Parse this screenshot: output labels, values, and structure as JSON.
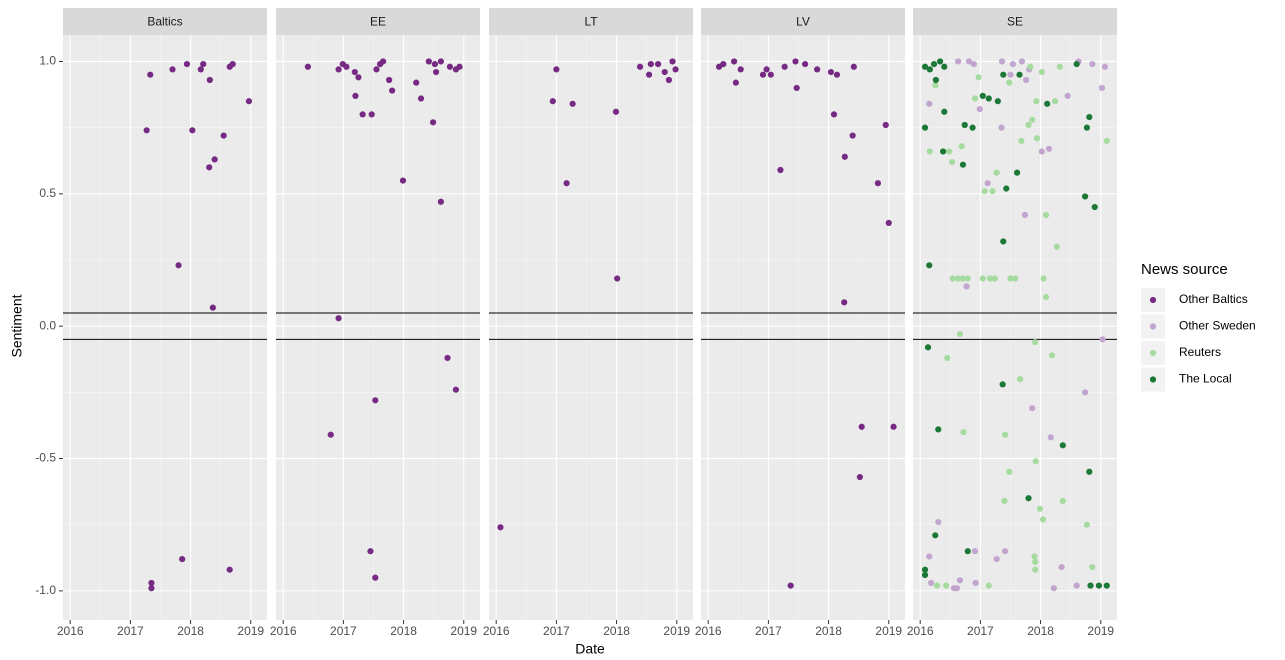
{
  "chart_data": {
    "type": "scatter",
    "xlabel": "Date",
    "ylabel": "Sentiment",
    "xlim": [
      2015.88,
      2019.27
    ],
    "xticks": [
      2016,
      2017,
      2018,
      2019
    ],
    "ylim": [
      -1.11,
      1.1
    ],
    "yticks": [
      {
        "value": -1,
        "label": "-1.0"
      },
      {
        "value": -0.5,
        "label": "-0.5"
      },
      {
        "value": 0,
        "label": "0.0"
      },
      {
        "value": 0.5,
        "label": "0.5"
      },
      {
        "value": 1,
        "label": "1.0"
      }
    ],
    "reference_lines": [
      0.05,
      -0.05
    ],
    "grid": true,
    "legend": {
      "title": "News source",
      "position": "right"
    },
    "series": [
      {
        "name": "Other Baltics",
        "color": "#762a83"
      },
      {
        "name": "Other Sweden",
        "color": "#c2a5cf"
      },
      {
        "name": "Reuters",
        "color": "#a6dba0"
      },
      {
        "name": "The Local",
        "color": "#1b7837"
      }
    ],
    "facets": [
      {
        "title": "Baltics",
        "series": [
          {
            "name": "Other Baltics",
            "x": [
              2017.27,
              2017.33,
              2017.7,
              2017.94,
              2018.17,
              2018.21,
              2018.03,
              2018.32,
              2018.31,
              2018.4,
              2018.55,
              2018.65,
              2018.7,
              2018.97,
              2017.8,
              2018.37,
              2017.35,
              2017.35,
              2017.86,
              2018.65
            ],
            "values": [
              0.74,
              0.95,
              0.97,
              0.99,
              0.97,
              0.99,
              0.74,
              0.93,
              0.6,
              0.63,
              0.72,
              0.98,
              0.99,
              0.85,
              0.23,
              0.07,
              -0.97,
              -0.99,
              -0.88,
              -0.92
            ]
          }
        ]
      },
      {
        "title": "EE",
        "series": [
          {
            "name": "Other Baltics",
            "x": [
              2016.41,
              2016.92,
              2016.99,
              2017.05,
              2017.19,
              2017.25,
              2017.2,
              2017.32,
              2017.47,
              2017.55,
              2017.61,
              2017.66,
              2017.76,
              2017.81,
              2017.99,
              2018.21,
              2018.29,
              2018.42,
              2018.52,
              2018.54,
              2018.62,
              2018.49,
              2018.62,
              2018.77,
              2018.87,
              2018.93,
              2016.92,
              2016.79,
              2017.53,
              2018.73,
              2018.87,
              2017.45,
              2017.53
            ],
            "values": [
              0.98,
              0.97,
              0.99,
              0.98,
              0.96,
              0.94,
              0.87,
              0.8,
              0.8,
              0.97,
              0.99,
              1.0,
              0.93,
              0.89,
              0.55,
              0.92,
              0.86,
              1.0,
              0.99,
              0.96,
              1.0,
              0.77,
              0.47,
              0.98,
              0.97,
              0.98,
              0.03,
              -0.41,
              -0.28,
              -0.12,
              -0.24,
              -0.85,
              -0.95
            ]
          }
        ]
      },
      {
        "title": "LT",
        "series": [
          {
            "name": "Other Baltics",
            "x": [
              2016.94,
              2017.0,
              2017.27,
              2017.17,
              2017.99,
              2018.01,
              2018.39,
              2018.54,
              2018.57,
              2018.69,
              2018.8,
              2018.87,
              2018.93,
              2018.98,
              2016.07
            ],
            "values": [
              0.85,
              0.97,
              0.84,
              0.54,
              0.81,
              0.18,
              0.98,
              0.95,
              0.99,
              0.99,
              0.96,
              0.93,
              1.0,
              0.97,
              -0.76
            ]
          }
        ]
      },
      {
        "title": "LV",
        "series": [
          {
            "name": "Other Baltics",
            "x": [
              2016.18,
              2016.25,
              2016.43,
              2016.46,
              2016.54,
              2016.91,
              2016.97,
              2017.04,
              2017.2,
              2017.27,
              2017.45,
              2017.47,
              2017.61,
              2017.81,
              2018.04,
              2018.14,
              2018.09,
              2018.27,
              2018.42,
              2018.4,
              2018.26,
              2018.82,
              2018.95,
              2019.0,
              2018.55,
              2019.08,
              2018.52,
              2017.37
            ],
            "values": [
              0.98,
              0.99,
              1.0,
              0.92,
              0.97,
              0.95,
              0.97,
              0.95,
              0.59,
              0.98,
              1.0,
              0.9,
              0.99,
              0.97,
              0.96,
              0.95,
              0.8,
              0.64,
              0.98,
              0.72,
              0.09,
              0.54,
              0.76,
              0.39,
              -0.38,
              -0.38,
              -0.57,
              -0.98
            ]
          }
        ]
      },
      {
        "title": "SE",
        "series": [
          {
            "name": "Other Sweden",
            "x": [
              2016.15,
              2016.63,
              2016.81,
              2016.89,
              2016.99,
              2017.12,
              2017.35,
              2017.36,
              2017.5,
              2017.54,
              2017.69,
              2017.76,
              2017.81,
              2017.74,
              2018.02,
              2018.14,
              2018.45,
              2018.63,
              2018.86,
              2019.07,
              2019.02,
              2016.77,
              2019.03,
              2017.86,
              2018.17,
              2018.74,
              2016.3,
              2016.15,
              2016.18,
              2016.56,
              2016.61,
              2016.66,
              2016.92,
              2016.91,
              2017.27,
              2017.41,
              2018.22,
              2018.35,
              2018.6
            ],
            "values": [
              0.84,
              1.0,
              1.0,
              0.99,
              0.82,
              0.54,
              0.75,
              1.0,
              0.95,
              0.99,
              1.0,
              0.93,
              0.97,
              0.42,
              0.66,
              0.67,
              0.87,
              1.0,
              0.99,
              0.98,
              0.9,
              0.15,
              -0.05,
              -0.31,
              -0.42,
              -0.25,
              -0.74,
              -0.87,
              -0.97,
              -0.99,
              -0.99,
              -0.96,
              -0.97,
              -0.85,
              -0.88,
              -0.85,
              -0.99,
              -0.91,
              -0.98
            ]
          },
          {
            "name": "Reuters",
            "x": [
              2016.54,
              2016.63,
              2016.71,
              2016.79,
              2017.04,
              2017.16,
              2017.24,
              2017.5,
              2017.58,
              2018.05,
              2016.16,
              2016.25,
              2016.48,
              2016.53,
              2016.69,
              2016.91,
              2016.97,
              2017.07,
              2017.2,
              2017.27,
              2017.48,
              2017.68,
              2017.8,
              2017.86,
              2017.93,
              2017.94,
              2018.02,
              2018.09,
              2018.09,
              2018.24,
              2018.27,
              2018.32,
              2019.1,
              2017.83,
              2016.45,
              2016.66,
              2016.72,
              2016.28,
              2016.43,
              2017.14,
              2017.41,
              2017.4,
              2017.48,
              2017.66,
              2017.91,
              2017.92,
              2017.9,
              2017.91,
              2017.91,
              2017.99,
              2018.04,
              2018.19,
              2018.37,
              2018.77,
              2018.86
            ],
            "values": [
              0.18,
              0.18,
              0.18,
              0.18,
              0.18,
              0.18,
              0.18,
              0.18,
              0.18,
              0.18,
              0.66,
              0.91,
              0.66,
              0.62,
              0.68,
              0.86,
              0.94,
              0.51,
              0.51,
              0.58,
              0.92,
              0.7,
              0.76,
              0.78,
              0.85,
              0.71,
              0.96,
              0.42,
              0.11,
              0.85,
              0.3,
              0.98,
              0.7,
              0.98,
              -0.12,
              -0.03,
              -0.4,
              -0.98,
              -0.98,
              -0.98,
              -0.41,
              -0.66,
              -0.55,
              -0.2,
              -0.06,
              -0.51,
              -0.87,
              -0.89,
              -0.92,
              -0.69,
              -0.73,
              -0.11,
              -0.66,
              -0.75,
              -0.91
            ]
          },
          {
            "name": "The Local",
            "x": [
              2016.08,
              2016.16,
              2016.23,
              2016.33,
              2016.4,
              2016.26,
              2016.08,
              2016.4,
              2016.38,
              2016.71,
              2016.74,
              2016.87,
              2017.04,
              2017.14,
              2017.29,
              2017.38,
              2017.43,
              2017.38,
              2017.65,
              2017.61,
              2018.11,
              2018.6,
              2018.77,
              2018.81,
              2018.74,
              2018.9,
              2016.15,
              2016.13,
              2016.3,
              2016.25,
              2016.08,
              2016.08,
              2016.79,
              2017.37,
              2018.37,
              2017.8,
              2018.81,
              2018.83,
              2018.97,
              2019.1
            ],
            "values": [
              0.98,
              0.97,
              0.99,
              1.0,
              0.98,
              0.93,
              0.75,
              0.81,
              0.66,
              0.61,
              0.76,
              0.75,
              0.87,
              0.86,
              0.85,
              0.95,
              0.52,
              0.32,
              0.95,
              0.58,
              0.84,
              0.99,
              0.75,
              0.79,
              0.49,
              0.45,
              0.23,
              -0.08,
              -0.39,
              -0.79,
              -0.92,
              -0.94,
              -0.85,
              -0.22,
              -0.45,
              -0.65,
              -0.55,
              -0.98,
              -0.98,
              -0.98
            ]
          }
        ]
      }
    ]
  }
}
